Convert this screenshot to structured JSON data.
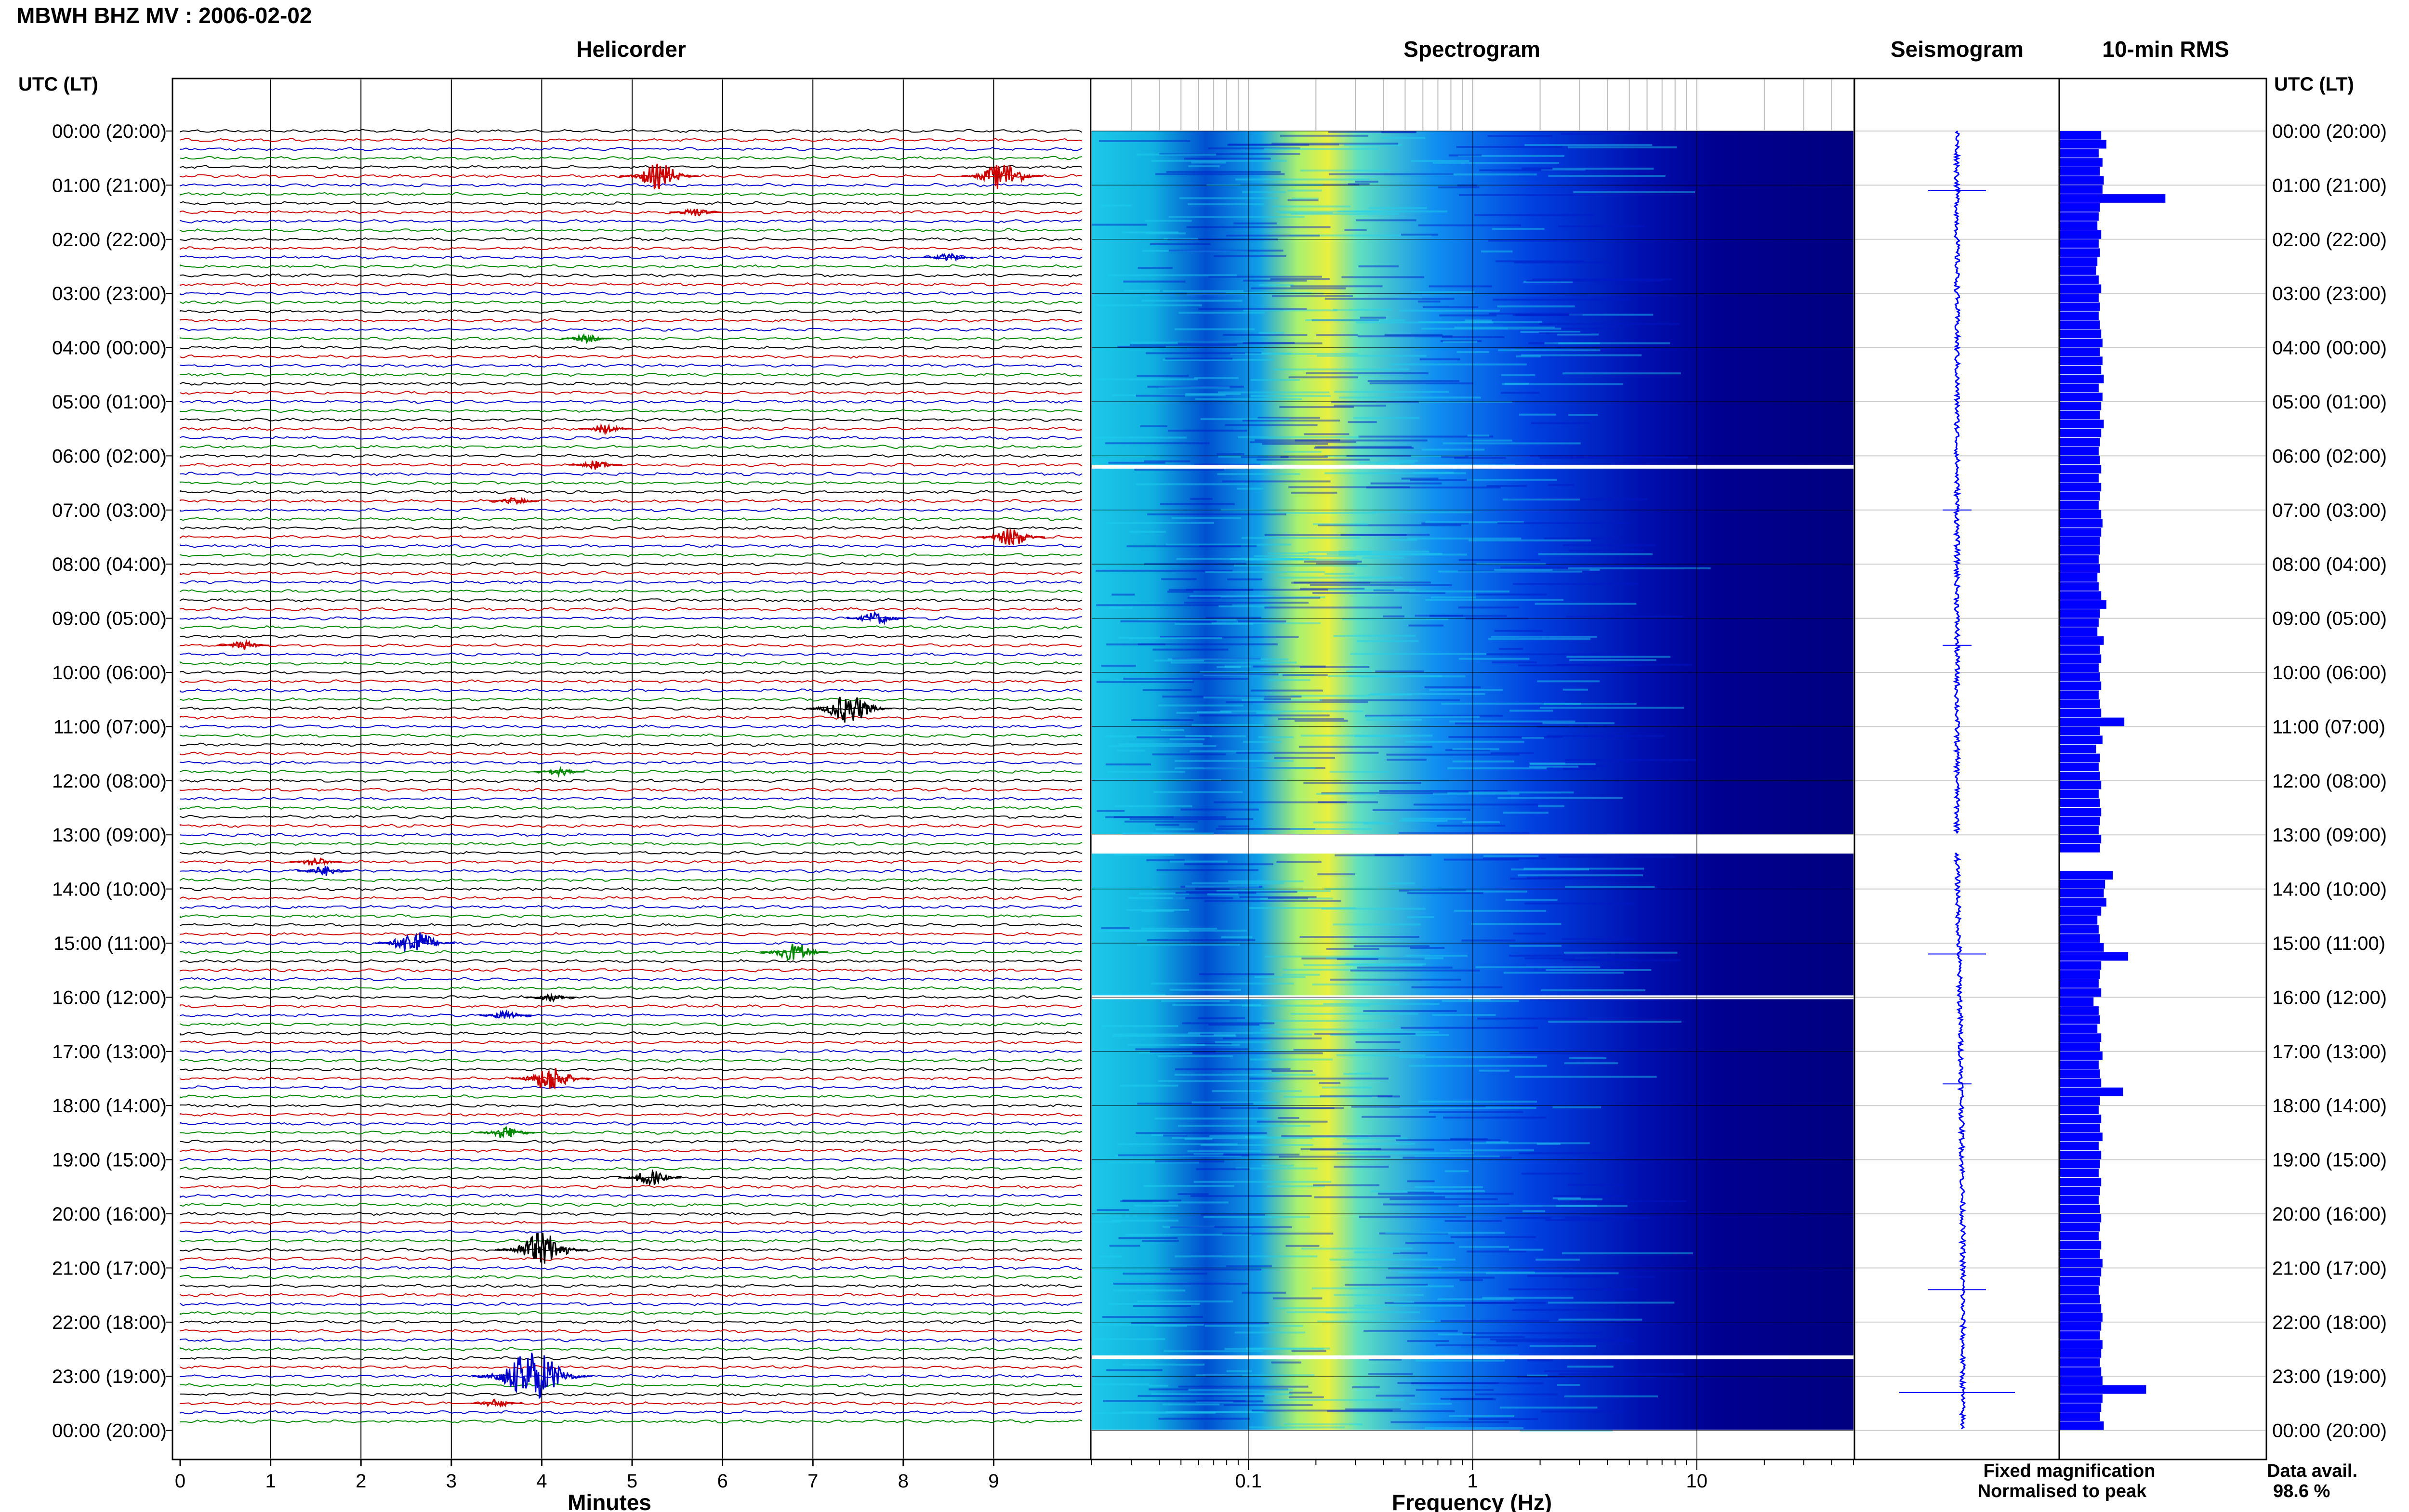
{
  "figure": {
    "title": "MBWH BHZ MV : 2006-02-02",
    "left_axis_label": "UTC (LT)",
    "right_axis_label": "UTC (LT)",
    "footer": {
      "fixed_magnification": "Fixed magnification",
      "normalised_to_peak": "Normalised to peak",
      "data_avail_label": "Data avail.",
      "data_avail_value": "98.6 %"
    },
    "colors": {
      "trace_cycle": [
        "#000000",
        "#cc0000",
        "#0000cc",
        "#008800"
      ],
      "spectrogram_low": "#00007f",
      "spectrogram_mid": "#00c8ff",
      "spectrogram_high": "#f0f000",
      "rms": "#0000ff",
      "seismogram": "#0000ff",
      "fixed_label": "#0000ff",
      "normalised_label": "#ff0000"
    }
  },
  "chart_data": [
    {
      "type": "line",
      "panel": "helicorder",
      "title": "Helicorder",
      "xlabel": "Minutes",
      "x_ticks": [
        "0",
        "1",
        "2",
        "3",
        "4",
        "5",
        "6",
        "7",
        "8",
        "9"
      ],
      "xlim": [
        0,
        10
      ],
      "hour_labels": [
        "00:00 (20:00)",
        "01:00 (21:00)",
        "02:00 (22:00)",
        "03:00 (23:00)",
        "04:00 (00:00)",
        "05:00 (01:00)",
        "06:00 (02:00)",
        "07:00 (03:00)",
        "08:00 (04:00)",
        "09:00 (05:00)",
        "10:00 (06:00)",
        "11:00 (07:00)",
        "12:00 (08:00)",
        "13:00 (09:00)",
        "14:00 (10:00)",
        "15:00 (11:00)",
        "16:00 (12:00)",
        "17:00 (13:00)",
        "18:00 (14:00)",
        "19:00 (15:00)",
        "20:00 (16:00)",
        "21:00 (17:00)",
        "22:00 (18:00)",
        "23:00 (19:00)",
        "00:00 (20:00)"
      ],
      "rows_per_hour": 6,
      "total_rows": 144,
      "events": [
        {
          "row": 5,
          "minute": 5.3,
          "amp": 3.0
        },
        {
          "row": 5,
          "minute": 9.1,
          "amp": 3.2
        },
        {
          "row": 9,
          "minute": 5.7,
          "amp": 1.0
        },
        {
          "row": 14,
          "minute": 8.5,
          "amp": 0.9
        },
        {
          "row": 23,
          "minute": 4.5,
          "amp": 0.9
        },
        {
          "row": 33,
          "minute": 4.7,
          "amp": 1.0
        },
        {
          "row": 37,
          "minute": 4.6,
          "amp": 1.1
        },
        {
          "row": 41,
          "minute": 3.7,
          "amp": 0.8
        },
        {
          "row": 45,
          "minute": 9.2,
          "amp": 2.2
        },
        {
          "row": 54,
          "minute": 7.7,
          "amp": 1.5
        },
        {
          "row": 57,
          "minute": 0.7,
          "amp": 1.0
        },
        {
          "row": 64,
          "minute": 7.4,
          "amp": 3.5
        },
        {
          "row": 71,
          "minute": 4.2,
          "amp": 0.9
        },
        {
          "row": 81,
          "minute": 1.5,
          "amp": 1.0
        },
        {
          "row": 82,
          "minute": 1.6,
          "amp": 1.2
        },
        {
          "row": 90,
          "minute": 2.6,
          "amp": 3.0
        },
        {
          "row": 91,
          "minute": 6.8,
          "amp": 2.2
        },
        {
          "row": 96,
          "minute": 4.1,
          "amp": 0.9
        },
        {
          "row": 98,
          "minute": 3.6,
          "amp": 1.0
        },
        {
          "row": 105,
          "minute": 4.1,
          "amp": 3.0
        },
        {
          "row": 111,
          "minute": 3.6,
          "amp": 1.5
        },
        {
          "row": 116,
          "minute": 5.2,
          "amp": 1.8
        },
        {
          "row": 124,
          "minute": 4.0,
          "amp": 4.0
        },
        {
          "row": 138,
          "minute": 3.9,
          "amp": 6.0
        },
        {
          "row": 141,
          "minute": 3.5,
          "amp": 1.0
        }
      ]
    },
    {
      "type": "heatmap",
      "panel": "spectrogram",
      "title": "Spectrogram",
      "xlabel": "Frequency (Hz)",
      "x_scale": "log",
      "xlim": [
        0.02,
        50
      ],
      "x_ticks": [
        0.1,
        1,
        10
      ],
      "x_tick_labels": [
        "0.1",
        "1",
        "10"
      ],
      "gaps_utc_hours": [
        6.2,
        13.0,
        16.0,
        22.65
      ],
      "dominant_band_hz": [
        0.18,
        0.35
      ]
    },
    {
      "type": "line",
      "panel": "seismogram",
      "title": "Seismogram",
      "spikes_utc_hours": [
        1.1,
        7.0,
        9.5,
        15.2,
        17.6,
        21.4,
        23.3
      ]
    },
    {
      "type": "bar",
      "panel": "rms",
      "title": "10-min RMS",
      "orientation": "horizontal",
      "values": [
        3.2,
        3.6,
        3.0,
        3.3,
        3.1,
        3.4,
        3.3,
        8.2,
        3.1,
        3.0,
        2.9,
        3.2,
        3.0,
        3.1,
        2.9,
        2.8,
        3.0,
        3.2,
        3.0,
        3.1,
        3.0,
        3.1,
        3.2,
        3.3,
        3.1,
        3.3,
        3.2,
        3.4,
        3.0,
        3.3,
        3.2,
        3.1,
        3.4,
        3.2,
        3.1,
        3.0,
        3.1,
        3.2,
        3.0,
        3.2,
        3.1,
        3.0,
        3.2,
        3.3,
        3.2,
        3.1,
        3.1,
        3.0,
        3.1,
        2.9,
        3.0,
        3.2,
        3.6,
        3.1,
        3.0,
        2.9,
        3.4,
        3.1,
        3.2,
        3.0,
        3.1,
        3.2,
        3.0,
        3.1,
        3.2,
        5.0,
        3.1,
        3.3,
        2.8,
        3.1,
        3.0,
        3.1,
        3.2,
        3.0,
        3.1,
        3.2,
        3.1,
        3.0,
        3.2,
        3.1,
        0,
        0,
        4.1,
        3.5,
        3.4,
        3.6,
        3.2,
        2.9,
        3.0,
        3.1,
        3.4,
        5.3,
        3.2,
        3.1,
        3.0,
        3.2,
        2.6,
        3.0,
        3.1,
        2.9,
        3.2,
        3.1,
        3.3,
        3.0,
        3.1,
        3.2,
        4.9,
        3.1,
        3.0,
        3.2,
        3.1,
        3.3,
        3.0,
        3.2,
        3.1,
        3.0,
        3.2,
        3.1,
        3.0,
        3.1,
        3.2,
        3.1,
        3.0,
        3.2,
        3.1,
        3.3,
        3.2,
        3.1,
        3.0,
        3.1,
        3.2,
        3.3,
        3.2,
        3.1,
        3.3,
        3.2,
        3.1,
        3.2,
        3.3,
        6.7,
        3.3,
        3.2,
        3.1,
        3.4
      ],
      "xlim": [
        0,
        16
      ]
    }
  ]
}
